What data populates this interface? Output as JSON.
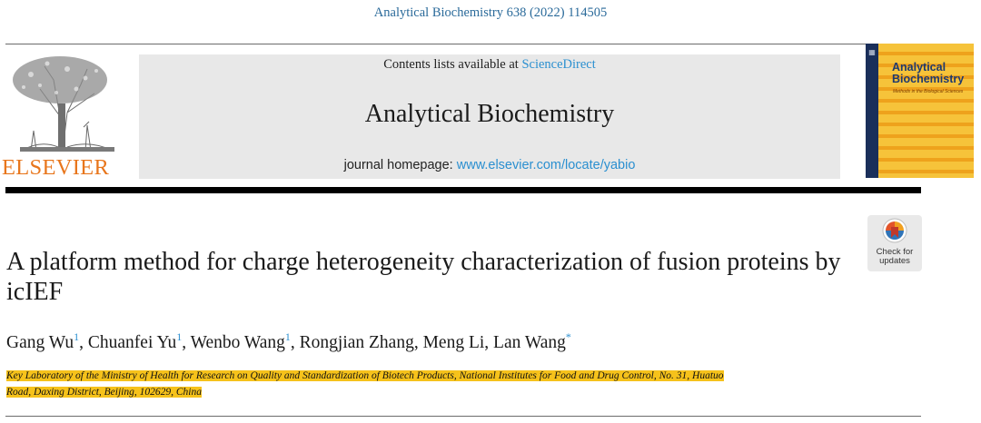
{
  "citation": "Analytical Biochemistry 638 (2022) 114505",
  "header": {
    "publisher_logo_text": "ELSEVIER",
    "contents_prefix": "Contents lists available at",
    "contents_link": "ScienceDirect",
    "journal_name": "Analytical Biochemistry",
    "homepage_prefix": "journal homepage:",
    "homepage_link": "www.elsevier.com/locate/yabio",
    "cover_title_line1": "Analytical",
    "cover_title_line2": "Biochemistry",
    "cover_subtitle": "Methods in the Biological Sciences",
    "colors": {
      "link": "#2a8fd0",
      "elsevier_orange": "#e8761c",
      "highlight": "#f6c21b"
    }
  },
  "badge": {
    "line1": "Check for",
    "line2": "updates",
    "icon": "check-for-updates-icon"
  },
  "article": {
    "title": "A platform method for charge heterogeneity characterization of fusion proteins by icIEF",
    "authors": [
      {
        "name": "Gang Wu",
        "mark": "1",
        "sep": ", "
      },
      {
        "name": "Chuanfei Yu",
        "mark": "1",
        "sep": ", "
      },
      {
        "name": "Wenbo Wang",
        "mark": "1",
        "sep": ", "
      },
      {
        "name": "Rongjian Zhang",
        "mark": "",
        "sep": ", "
      },
      {
        "name": "Meng Li",
        "mark": "",
        "sep": ", "
      },
      {
        "name": "Lan Wang",
        "mark": "*",
        "sep": ""
      }
    ],
    "affiliation_line1": "Key Laboratory of the Ministry of Health for Research on Quality and Standardization of Biotech Products, National Institutes for Food and Drug Control, No. 31, Huatuo",
    "affiliation_line2": "Road, Daxing District, Beijing, 102629, China"
  }
}
